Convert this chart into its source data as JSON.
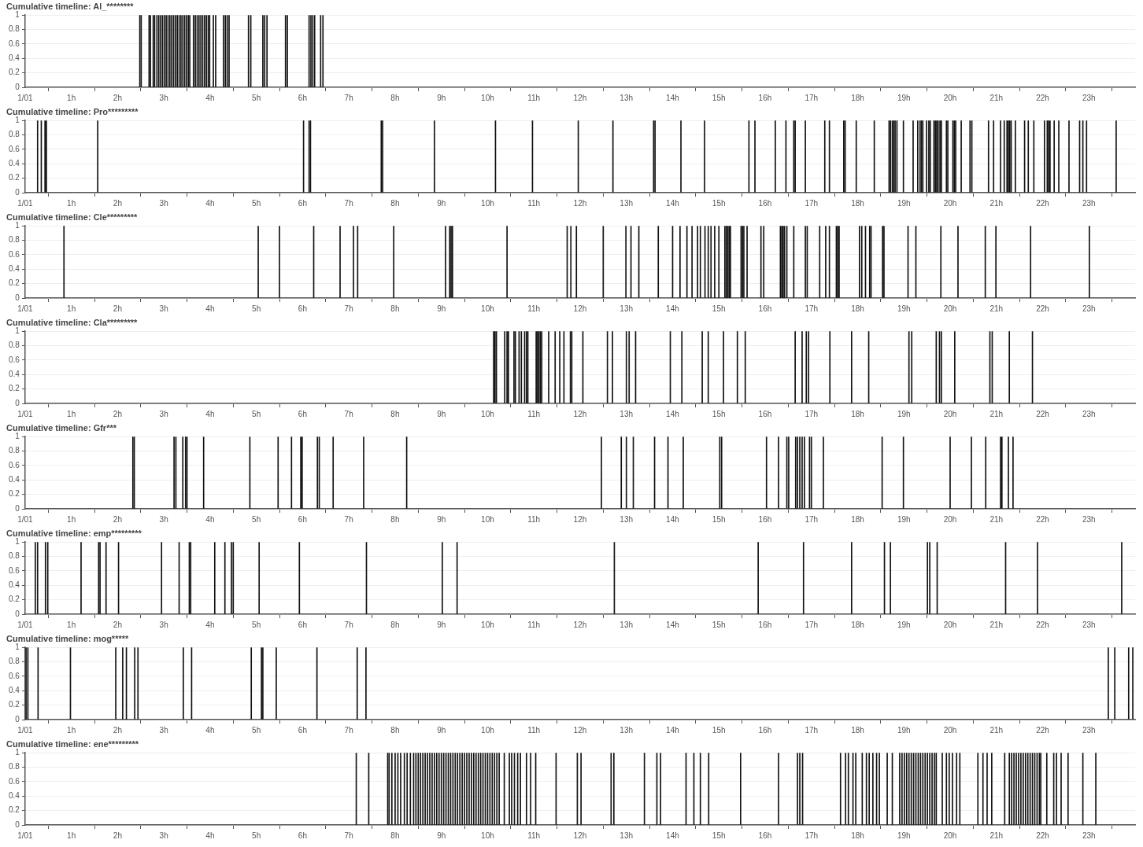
{
  "chart_data": [
    {
      "type": "bar",
      "title": "Cumulative timeline: Al_********",
      "color": "#111111",
      "grid": "y",
      "xlim": [
        0,
        24
      ],
      "xticks": [
        {
          "value": 0,
          "label": "1/01"
        },
        {
          "value": 1,
          "label": "1h"
        },
        {
          "value": 2,
          "label": "2h"
        },
        {
          "value": 3,
          "label": "3h"
        },
        {
          "value": 4,
          "label": "4h"
        },
        {
          "value": 5,
          "label": "5h"
        },
        {
          "value": 6,
          "label": "6h"
        },
        {
          "value": 7,
          "label": "7h"
        },
        {
          "value": 8,
          "label": "8h"
        },
        {
          "value": 9,
          "label": "9h"
        },
        {
          "value": 10,
          "label": "10h"
        },
        {
          "value": 11,
          "label": "11h"
        },
        {
          "value": 12,
          "label": "12h"
        },
        {
          "value": 13,
          "label": "13h"
        },
        {
          "value": 14,
          "label": "14h"
        },
        {
          "value": 15,
          "label": "15h"
        },
        {
          "value": 16,
          "label": "16h"
        },
        {
          "value": 17,
          "label": "17h"
        },
        {
          "value": 18,
          "label": "18h"
        },
        {
          "value": 19,
          "label": "19h"
        },
        {
          "value": 20,
          "label": "20h"
        },
        {
          "value": 21,
          "label": "21h"
        },
        {
          "value": 22,
          "label": "22h"
        },
        {
          "value": 23,
          "label": "23h"
        }
      ],
      "ylim": [
        0,
        1
      ],
      "yticks": [
        0,
        0.2,
        0.4,
        0.6,
        0.8,
        1
      ],
      "x": [
        2.48,
        2.51,
        2.68,
        2.71,
        2.77,
        2.8,
        2.85,
        2.89,
        2.93,
        2.97,
        3.01,
        3.05,
        3.09,
        3.13,
        3.17,
        3.21,
        3.25,
        3.29,
        3.33,
        3.37,
        3.41,
        3.45,
        3.49,
        3.53,
        3.56,
        3.64,
        3.68,
        3.72,
        3.76,
        3.8,
        3.84,
        3.88,
        3.92,
        3.96,
        3.99,
        4.07,
        4.12,
        4.29,
        4.33,
        4.37,
        4.41,
        4.83,
        4.88,
        5.14,
        5.18,
        5.23,
        5.63,
        5.67,
        6.14,
        6.18,
        6.22,
        6.26,
        6.39,
        6.44
      ],
      "values": [
        1,
        1,
        1,
        1,
        1,
        1,
        1,
        1,
        1,
        1,
        1,
        1,
        1,
        1,
        1,
        1,
        1,
        1,
        1,
        1,
        1,
        1,
        1,
        1,
        1,
        1,
        1,
        1,
        1,
        1,
        1,
        1,
        1,
        1,
        1,
        1,
        1,
        1,
        1,
        1,
        1,
        1,
        1,
        1,
        1,
        1,
        1,
        1,
        1,
        1,
        1,
        1,
        1,
        1
      ]
    },
    {
      "type": "bar",
      "title": "Cumulative timeline: Pro*********",
      "color": "#111111",
      "grid": "y",
      "xlim": [
        0,
        24
      ],
      "xticks": [
        {
          "value": 0,
          "label": "1/01"
        },
        {
          "value": 1,
          "label": "1h"
        },
        {
          "value": 2,
          "label": "2h"
        },
        {
          "value": 3,
          "label": "3h"
        },
        {
          "value": 4,
          "label": "4h"
        },
        {
          "value": 5,
          "label": "5h"
        },
        {
          "value": 6,
          "label": "6h"
        },
        {
          "value": 7,
          "label": "7h"
        },
        {
          "value": 8,
          "label": "8h"
        },
        {
          "value": 9,
          "label": "9h"
        },
        {
          "value": 10,
          "label": "10h"
        },
        {
          "value": 11,
          "label": "11h"
        },
        {
          "value": 12,
          "label": "12h"
        },
        {
          "value": 13,
          "label": "13h"
        },
        {
          "value": 14,
          "label": "14h"
        },
        {
          "value": 15,
          "label": "15h"
        },
        {
          "value": 16,
          "label": "16h"
        },
        {
          "value": 17,
          "label": "17h"
        },
        {
          "value": 18,
          "label": "18h"
        },
        {
          "value": 19,
          "label": "19h"
        },
        {
          "value": 20,
          "label": "20h"
        },
        {
          "value": 21,
          "label": "21h"
        },
        {
          "value": 22,
          "label": "22h"
        },
        {
          "value": 23,
          "label": "23h"
        }
      ],
      "ylim": [
        0,
        1
      ],
      "yticks": [
        0,
        0.2,
        0.4,
        0.6,
        0.8,
        1
      ],
      "x": [
        0.27,
        0.35,
        0.43,
        0.46,
        1.57,
        6.02,
        6.14,
        6.17,
        7.7,
        7.73,
        8.85,
        10.17,
        10.97,
        11.96,
        12.71,
        13.59,
        13.62,
        14.18,
        14.69,
        15.65,
        15.78,
        16.22,
        16.45,
        16.62,
        16.65,
        16.87,
        17.29,
        17.39,
        17.7,
        17.73,
        17.97,
        18.36,
        18.68,
        18.71,
        18.75,
        18.78,
        18.81,
        18.85,
        18.99,
        19.2,
        19.3,
        19.35,
        19.38,
        19.41,
        19.49,
        19.54,
        19.57,
        19.65,
        19.68,
        19.71,
        19.74,
        19.78,
        19.81,
        19.92,
        19.95,
        20.06,
        20.09,
        20.12,
        20.24,
        20.43,
        20.47,
        20.83,
        20.94,
        21.09,
        21.17,
        21.23,
        21.26,
        21.29,
        21.32,
        21.41,
        21.61,
        21.69,
        21.81,
        22.04,
        22.1,
        22.13,
        22.16,
        22.25,
        22.35,
        22.57,
        22.8,
        22.87,
        22.95,
        23.59
      ],
      "values": [
        1,
        1,
        1,
        1,
        1,
        1,
        1,
        1,
        1,
        1,
        1,
        1,
        1,
        1,
        1,
        1,
        1,
        1,
        1,
        1,
        1,
        1,
        1,
        1,
        1,
        1,
        1,
        1,
        1,
        1,
        1,
        1,
        1,
        1,
        1,
        1,
        1,
        1,
        1,
        1,
        1,
        1,
        1,
        1,
        1,
        1,
        1,
        1,
        1,
        1,
        1,
        1,
        1,
        1,
        1,
        1,
        1,
        1,
        1,
        1,
        1,
        1,
        1,
        1,
        1,
        1,
        1,
        1,
        1,
        1,
        1,
        1,
        1,
        1,
        1,
        1,
        1,
        1,
        1,
        1,
        1,
        1,
        1,
        1
      ]
    },
    {
      "type": "bar",
      "title": "Cumulative timeline: Cle*********",
      "color": "#111111",
      "grid": "y",
      "xlim": [
        0,
        24
      ],
      "xticks": [
        {
          "value": 0,
          "label": "1/01"
        },
        {
          "value": 1,
          "label": "1h"
        },
        {
          "value": 2,
          "label": "2h"
        },
        {
          "value": 3,
          "label": "3h"
        },
        {
          "value": 4,
          "label": "4h"
        },
        {
          "value": 5,
          "label": "5h"
        },
        {
          "value": 6,
          "label": "6h"
        },
        {
          "value": 7,
          "label": "7h"
        },
        {
          "value": 8,
          "label": "8h"
        },
        {
          "value": 9,
          "label": "9h"
        },
        {
          "value": 10,
          "label": "10h"
        },
        {
          "value": 11,
          "label": "11h"
        },
        {
          "value": 12,
          "label": "12h"
        },
        {
          "value": 13,
          "label": "13h"
        },
        {
          "value": 14,
          "label": "14h"
        },
        {
          "value": 15,
          "label": "15h"
        },
        {
          "value": 16,
          "label": "16h"
        },
        {
          "value": 17,
          "label": "17h"
        },
        {
          "value": 18,
          "label": "18h"
        },
        {
          "value": 19,
          "label": "19h"
        },
        {
          "value": 20,
          "label": "20h"
        },
        {
          "value": 21,
          "label": "21h"
        },
        {
          "value": 22,
          "label": "22h"
        },
        {
          "value": 23,
          "label": "23h"
        }
      ],
      "ylim": [
        0,
        1
      ],
      "yticks": [
        0,
        0.2,
        0.4,
        0.6,
        0.8,
        1
      ],
      "x": [
        0.84,
        5.04,
        5.5,
        6.24,
        6.81,
        7.1,
        7.19,
        7.97,
        9.09,
        9.18,
        9.21,
        9.24,
        10.42,
        11.72,
        11.8,
        11.92,
        12.5,
        12.99,
        13.1,
        13.27,
        13.69,
        14.0,
        14.16,
        14.31,
        14.42,
        14.54,
        14.6,
        14.7,
        14.77,
        14.83,
        14.91,
        15.0,
        15.13,
        15.16,
        15.19,
        15.22,
        15.25,
        15.48,
        15.51,
        15.54,
        15.61,
        15.91,
        15.97,
        16.33,
        16.36,
        16.39,
        16.42,
        16.47,
        16.62,
        16.87,
        16.91,
        17.18,
        17.31,
        17.39,
        17.54,
        17.57,
        17.6,
        18.04,
        18.09,
        18.17,
        18.26,
        18.29,
        18.54,
        18.57,
        19.09,
        19.26,
        19.8,
        20.17,
        20.76,
        20.99,
        21.74,
        23.01
      ],
      "values": [
        1,
        1,
        1,
        1,
        1,
        1,
        1,
        1,
        1,
        1,
        1,
        1,
        1,
        1,
        1,
        1,
        1,
        1,
        1,
        1,
        1,
        1,
        1,
        1,
        1,
        1,
        1,
        1,
        1,
        1,
        1,
        1,
        1,
        1,
        1,
        1,
        1,
        1,
        1,
        1,
        1,
        1,
        1,
        1,
        1,
        1,
        1,
        1,
        1,
        1,
        1,
        1,
        1,
        1,
        1,
        1,
        1,
        1,
        1,
        1,
        1,
        1,
        1,
        1,
        1,
        1,
        1,
        1,
        1,
        1,
        1,
        1
      ]
    },
    {
      "type": "bar",
      "title": "Cumulative timeline: Cla*********",
      "color": "#111111",
      "grid": "y",
      "xlim": [
        0,
        24
      ],
      "xticks": [
        {
          "value": 0,
          "label": "1/01"
        },
        {
          "value": 1,
          "label": "1h"
        },
        {
          "value": 2,
          "label": "2h"
        },
        {
          "value": 3,
          "label": "3h"
        },
        {
          "value": 4,
          "label": "4h"
        },
        {
          "value": 5,
          "label": "5h"
        },
        {
          "value": 6,
          "label": "6h"
        },
        {
          "value": 7,
          "label": "7h"
        },
        {
          "value": 8,
          "label": "8h"
        },
        {
          "value": 9,
          "label": "9h"
        },
        {
          "value": 10,
          "label": "10h"
        },
        {
          "value": 11,
          "label": "11h"
        },
        {
          "value": 12,
          "label": "12h"
        },
        {
          "value": 13,
          "label": "13h"
        },
        {
          "value": 14,
          "label": "14h"
        },
        {
          "value": 15,
          "label": "15h"
        },
        {
          "value": 16,
          "label": "16h"
        },
        {
          "value": 17,
          "label": "17h"
        },
        {
          "value": 18,
          "label": "18h"
        },
        {
          "value": 19,
          "label": "19h"
        },
        {
          "value": 20,
          "label": "20h"
        },
        {
          "value": 21,
          "label": "21h"
        },
        {
          "value": 22,
          "label": "22h"
        },
        {
          "value": 23,
          "label": "23h"
        }
      ],
      "ylim": [
        0,
        1
      ],
      "yticks": [
        0,
        0.2,
        0.4,
        0.6,
        0.8,
        1
      ],
      "x": [
        10.13,
        10.16,
        10.19,
        10.37,
        10.42,
        10.45,
        10.57,
        10.6,
        10.68,
        10.73,
        10.8,
        10.84,
        10.87,
        11.05,
        11.08,
        11.11,
        11.14,
        11.17,
        11.32,
        11.46,
        11.56,
        11.65,
        11.79,
        11.82,
        12.06,
        12.59,
        12.7,
        13.0,
        13.06,
        13.2,
        13.95,
        14.2,
        14.64,
        14.77,
        15.1,
        15.4,
        15.57,
        16.65,
        16.8,
        16.89,
        16.94,
        17.4,
        17.87,
        18.24,
        19.11,
        19.17,
        19.7,
        19.77,
        19.81,
        20.1,
        20.86,
        20.91,
        21.28,
        21.78
      ],
      "values": [
        1,
        1,
        1,
        1,
        1,
        1,
        1,
        1,
        1,
        1,
        1,
        1,
        1,
        1,
        1,
        1,
        1,
        1,
        1,
        1,
        1,
        1,
        1,
        1,
        1,
        1,
        1,
        1,
        1,
        1,
        1,
        1,
        1,
        1,
        1,
        1,
        1,
        1,
        1,
        1,
        1,
        1,
        1,
        1,
        1,
        1,
        1,
        1,
        1,
        1,
        1,
        1,
        1,
        1
      ]
    },
    {
      "type": "bar",
      "title": "Cumulative timeline: Gfr***",
      "color": "#111111",
      "grid": "y",
      "xlim": [
        0,
        24
      ],
      "xticks": [
        {
          "value": 0,
          "label": "1/01"
        },
        {
          "value": 1,
          "label": "1h"
        },
        {
          "value": 2,
          "label": "2h"
        },
        {
          "value": 3,
          "label": "3h"
        },
        {
          "value": 4,
          "label": "4h"
        },
        {
          "value": 5,
          "label": "5h"
        },
        {
          "value": 6,
          "label": "6h"
        },
        {
          "value": 7,
          "label": "7h"
        },
        {
          "value": 8,
          "label": "8h"
        },
        {
          "value": 9,
          "label": "9h"
        },
        {
          "value": 10,
          "label": "10h"
        },
        {
          "value": 11,
          "label": "11h"
        },
        {
          "value": 12,
          "label": "12h"
        },
        {
          "value": 13,
          "label": "13h"
        },
        {
          "value": 14,
          "label": "14h"
        },
        {
          "value": 15,
          "label": "15h"
        },
        {
          "value": 16,
          "label": "16h"
        },
        {
          "value": 17,
          "label": "17h"
        },
        {
          "value": 18,
          "label": "18h"
        },
        {
          "value": 19,
          "label": "19h"
        },
        {
          "value": 20,
          "label": "20h"
        },
        {
          "value": 21,
          "label": "21h"
        },
        {
          "value": 22,
          "label": "22h"
        },
        {
          "value": 23,
          "label": "23h"
        }
      ],
      "ylim": [
        0,
        1
      ],
      "yticks": [
        0,
        0.2,
        0.4,
        0.6,
        0.8,
        1
      ],
      "x": [
        2.33,
        2.36,
        3.22,
        3.26,
        3.41,
        3.47,
        3.5,
        3.86,
        4.86,
        5.47,
        5.76,
        5.96,
        5.99,
        6.32,
        6.36,
        6.66,
        7.32,
        8.25,
        12.46,
        12.89,
        13.0,
        13.15,
        13.61,
        13.9,
        14.23,
        15.02,
        15.06,
        16.03,
        16.29,
        16.47,
        16.51,
        16.66,
        16.7,
        16.75,
        16.8,
        16.85,
        16.96,
        17.0,
        17.26,
        18.53,
        18.99,
        20.0,
        20.46,
        20.77,
        21.09,
        21.12,
        21.26,
        21.36
      ],
      "values": [
        1,
        1,
        1,
        1,
        1,
        1,
        1,
        1,
        1,
        1,
        1,
        1,
        1,
        1,
        1,
        1,
        1,
        1,
        1,
        1,
        1,
        1,
        1,
        1,
        1,
        1,
        1,
        1,
        1,
        1,
        1,
        1,
        1,
        1,
        1,
        1,
        1,
        1,
        1,
        1,
        1,
        1,
        1,
        1,
        1,
        1,
        1,
        1
      ]
    },
    {
      "type": "bar",
      "title": "Cumulative timeline: emp*********",
      "color": "#111111",
      "grid": "y",
      "xlim": [
        0,
        24
      ],
      "xticks": [
        {
          "value": 0,
          "label": "1/01"
        },
        {
          "value": 1,
          "label": "1h"
        },
        {
          "value": 2,
          "label": "2h"
        },
        {
          "value": 3,
          "label": "3h"
        },
        {
          "value": 4,
          "label": "4h"
        },
        {
          "value": 5,
          "label": "5h"
        },
        {
          "value": 6,
          "label": "6h"
        },
        {
          "value": 7,
          "label": "7h"
        },
        {
          "value": 8,
          "label": "8h"
        },
        {
          "value": 9,
          "label": "9h"
        },
        {
          "value": 10,
          "label": "10h"
        },
        {
          "value": 11,
          "label": "11h"
        },
        {
          "value": 12,
          "label": "12h"
        },
        {
          "value": 13,
          "label": "13h"
        },
        {
          "value": 14,
          "label": "14h"
        },
        {
          "value": 15,
          "label": "15h"
        },
        {
          "value": 16,
          "label": "16h"
        },
        {
          "value": 17,
          "label": "17h"
        },
        {
          "value": 18,
          "label": "18h"
        },
        {
          "value": 19,
          "label": "19h"
        },
        {
          "value": 20,
          "label": "20h"
        },
        {
          "value": 21,
          "label": "21h"
        },
        {
          "value": 22,
          "label": "22h"
        },
        {
          "value": 23,
          "label": "23h"
        }
      ],
      "ylim": [
        0,
        1
      ],
      "yticks": [
        0,
        0.2,
        0.4,
        0.6,
        0.8,
        1
      ],
      "x": [
        0.22,
        0.27,
        0.44,
        0.49,
        1.21,
        1.59,
        1.62,
        1.75,
        2.02,
        2.95,
        3.33,
        3.55,
        3.58,
        4.1,
        4.32,
        4.46,
        4.5,
        5.06,
        5.93,
        7.38,
        9.02,
        9.34,
        12.74,
        15.85,
        16.83,
        17.87,
        18.58,
        18.71,
        19.51,
        19.56,
        19.72,
        21.2,
        21.89,
        23.71
      ],
      "values": [
        1,
        1,
        1,
        1,
        1,
        1,
        1,
        1,
        1,
        1,
        1,
        1,
        1,
        1,
        1,
        1,
        1,
        1,
        1,
        1,
        1,
        1,
        1,
        1,
        1,
        1,
        1,
        1,
        1,
        1,
        1,
        1,
        1,
        1
      ]
    },
    {
      "type": "bar",
      "title": "Cumulative timeline: mog*****",
      "color": "#111111",
      "grid": "y",
      "xlim": [
        0,
        24
      ],
      "xticks": [
        {
          "value": 0,
          "label": "1/01"
        },
        {
          "value": 1,
          "label": "1h"
        },
        {
          "value": 2,
          "label": "2h"
        },
        {
          "value": 3,
          "label": "3h"
        },
        {
          "value": 4,
          "label": "4h"
        },
        {
          "value": 5,
          "label": "5h"
        },
        {
          "value": 6,
          "label": "6h"
        },
        {
          "value": 7,
          "label": "7h"
        },
        {
          "value": 8,
          "label": "8h"
        },
        {
          "value": 9,
          "label": "9h"
        },
        {
          "value": 10,
          "label": "10h"
        },
        {
          "value": 11,
          "label": "11h"
        },
        {
          "value": 12,
          "label": "12h"
        },
        {
          "value": 13,
          "label": "13h"
        },
        {
          "value": 14,
          "label": "14h"
        },
        {
          "value": 15,
          "label": "15h"
        },
        {
          "value": 16,
          "label": "16h"
        },
        {
          "value": 17,
          "label": "17h"
        },
        {
          "value": 18,
          "label": "18h"
        },
        {
          "value": 19,
          "label": "19h"
        },
        {
          "value": 20,
          "label": "20h"
        },
        {
          "value": 21,
          "label": "21h"
        },
        {
          "value": 22,
          "label": "22h"
        },
        {
          "value": 23,
          "label": "23h"
        }
      ],
      "ylim": [
        0,
        1
      ],
      "yticks": [
        0,
        0.2,
        0.4,
        0.6,
        0.8,
        1
      ],
      "x": [
        0.02,
        0.06,
        0.28,
        0.98,
        1.96,
        2.11,
        2.19,
        2.37,
        2.44,
        3.42,
        3.6,
        4.89,
        5.11,
        5.14,
        5.43,
        6.31,
        7.18,
        7.37,
        23.42,
        23.56,
        23.86,
        23.95
      ],
      "values": [
        1,
        1,
        1,
        1,
        1,
        1,
        1,
        1,
        1,
        1,
        1,
        1,
        1,
        1,
        1,
        1,
        1,
        1,
        1,
        1,
        1,
        1
      ]
    },
    {
      "type": "bar",
      "title": "Cumulative timeline: ene*********",
      "color": "#111111",
      "grid": "y",
      "xlim": [
        0,
        24
      ],
      "xticks": [
        {
          "value": 0,
          "label": "1/01"
        },
        {
          "value": 1,
          "label": "1h"
        },
        {
          "value": 2,
          "label": "2h"
        },
        {
          "value": 3,
          "label": "3h"
        },
        {
          "value": 4,
          "label": "4h"
        },
        {
          "value": 5,
          "label": "5h"
        },
        {
          "value": 6,
          "label": "6h"
        },
        {
          "value": 7,
          "label": "7h"
        },
        {
          "value": 8,
          "label": "8h"
        },
        {
          "value": 9,
          "label": "9h"
        },
        {
          "value": 10,
          "label": "10h"
        },
        {
          "value": 11,
          "label": "11h"
        },
        {
          "value": 12,
          "label": "12h"
        },
        {
          "value": 13,
          "label": "13h"
        },
        {
          "value": 14,
          "label": "14h"
        },
        {
          "value": 15,
          "label": "15h"
        },
        {
          "value": 16,
          "label": "16h"
        },
        {
          "value": 17,
          "label": "17h"
        },
        {
          "value": 18,
          "label": "18h"
        },
        {
          "value": 19,
          "label": "19h"
        },
        {
          "value": 20,
          "label": "20h"
        },
        {
          "value": 21,
          "label": "21h"
        },
        {
          "value": 22,
          "label": "22h"
        },
        {
          "value": 23,
          "label": "23h"
        }
      ],
      "ylim": [
        0,
        1
      ],
      "yticks": [
        0,
        0.2,
        0.4,
        0.6,
        0.8,
        1
      ],
      "x": [
        7.16,
        7.43,
        7.84,
        7.87,
        7.93,
        8.0,
        8.06,
        8.12,
        8.2,
        8.26,
        8.33,
        8.4,
        8.45,
        8.5,
        8.55,
        8.6,
        8.65,
        8.7,
        8.75,
        8.8,
        8.85,
        8.9,
        8.95,
        9.0,
        9.05,
        9.1,
        9.15,
        9.2,
        9.25,
        9.3,
        9.35,
        9.4,
        9.45,
        9.5,
        9.55,
        9.6,
        9.65,
        9.7,
        9.75,
        9.8,
        9.85,
        9.9,
        9.95,
        10.0,
        10.05,
        10.1,
        10.15,
        10.2,
        10.25,
        10.36,
        10.47,
        10.52,
        10.58,
        10.65,
        10.71,
        10.84,
        10.93,
        11.04,
        11.48,
        11.94,
        12.02,
        12.67,
        12.73,
        13.39,
        13.66,
        13.74,
        14.29,
        14.46,
        14.6,
        14.78,
        15.47,
        16.29,
        16.7,
        16.75,
        16.81,
        17.63,
        17.74,
        17.8,
        17.9,
        17.96,
        18.1,
        18.19,
        18.25,
        18.33,
        18.41,
        18.47,
        18.64,
        18.75,
        18.91,
        18.96,
        19.01,
        19.06,
        19.11,
        19.16,
        19.21,
        19.26,
        19.31,
        19.36,
        19.41,
        19.46,
        19.51,
        19.56,
        19.61,
        19.66,
        19.7,
        19.83,
        19.92,
        19.98,
        20.05,
        20.14,
        20.21,
        20.6,
        20.71,
        20.8,
        20.9,
        21.18,
        21.28,
        21.33,
        21.38,
        21.43,
        21.48,
        21.53,
        21.58,
        21.63,
        21.68,
        21.73,
        21.78,
        21.83,
        21.88,
        21.93,
        21.96,
        22.09,
        22.24,
        22.3,
        22.4,
        22.55,
        22.87,
        23.15
      ],
      "values": [
        1,
        1,
        1,
        1,
        1,
        1,
        1,
        1,
        1,
        1,
        1,
        1,
        1,
        1,
        1,
        1,
        1,
        1,
        1,
        1,
        1,
        1,
        1,
        1,
        1,
        1,
        1,
        1,
        1,
        1,
        1,
        1,
        1,
        1,
        1,
        1,
        1,
        1,
        1,
        1,
        1,
        1,
        1,
        1,
        1,
        1,
        1,
        1,
        1,
        1,
        1,
        1,
        1,
        1,
        1,
        1,
        1,
        1,
        1,
        1,
        1,
        1,
        1,
        1,
        1,
        1,
        1,
        1,
        1,
        1,
        1,
        1,
        1,
        1,
        1,
        1,
        1,
        1,
        1,
        1,
        1,
        1,
        1,
        1,
        1,
        1,
        1,
        1,
        1,
        1,
        1,
        1,
        1,
        1,
        1,
        1,
        1,
        1,
        1,
        1,
        1,
        1,
        1,
        1,
        1,
        1,
        1,
        1,
        1,
        1,
        1,
        1,
        1,
        1,
        1,
        1,
        1,
        1,
        1,
        1,
        1,
        1,
        1,
        1,
        1,
        1,
        1,
        1,
        1,
        1,
        1,
        1,
        1,
        1,
        1,
        1,
        1,
        1
      ]
    }
  ]
}
